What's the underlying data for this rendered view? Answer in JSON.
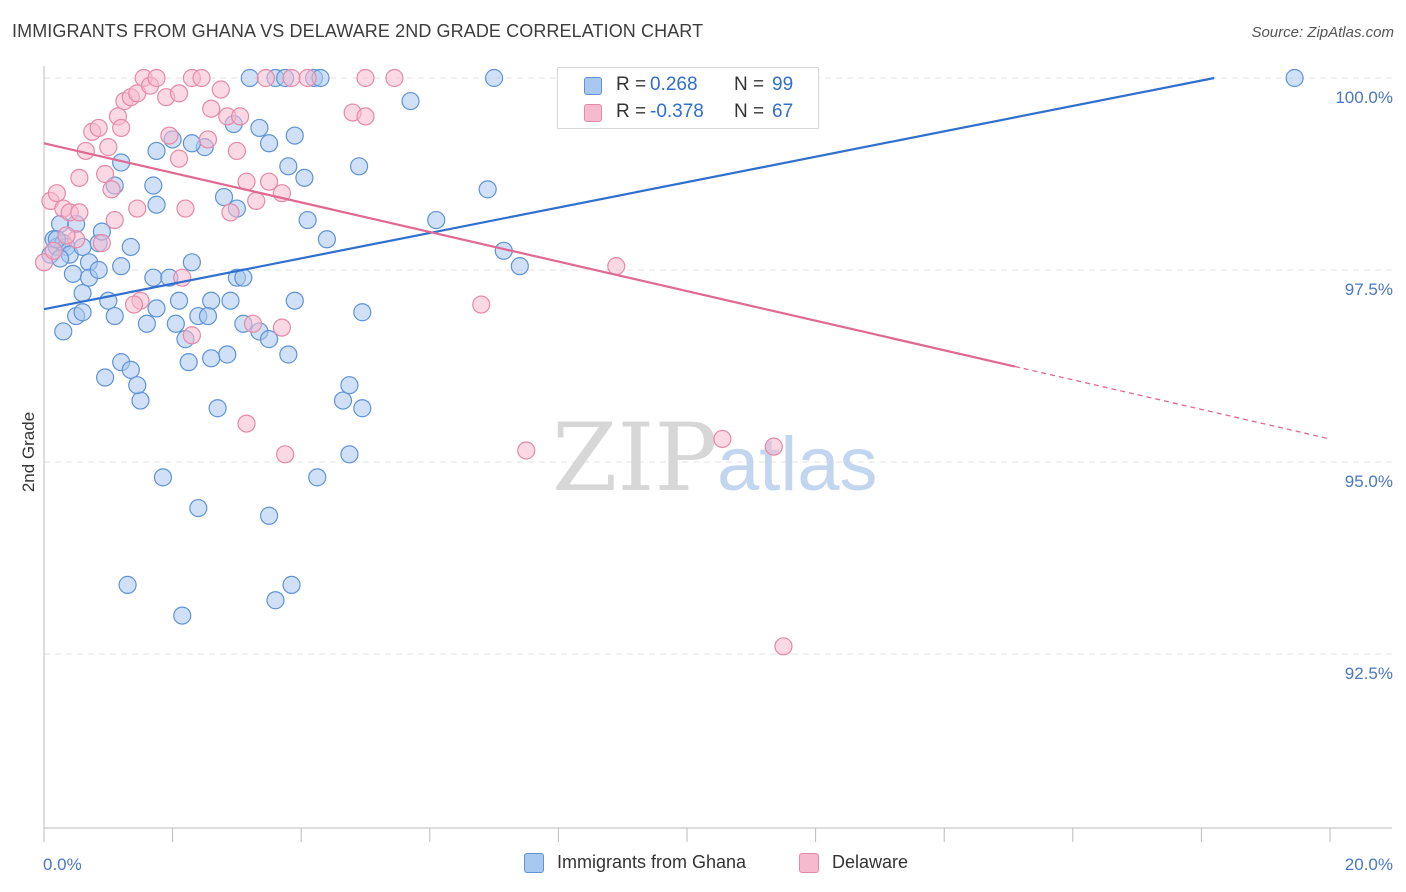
{
  "title": "IMMIGRANTS FROM GHANA VS DELAWARE 2ND GRADE CORRELATION CHART",
  "source": "Source: ZipAtlas.com",
  "watermark": {
    "zip": "ZIP",
    "atlas": "atlas"
  },
  "legend_top": {
    "rows": [
      {
        "r_label": "R =",
        "r_value": "0.268",
        "n_label": "N =",
        "n_value": "99"
      },
      {
        "r_label": "R =",
        "r_value": "-0.378",
        "n_label": "N =",
        "n_value": "67"
      }
    ]
  },
  "legend_bottom": {
    "items": [
      {
        "label": "Immigrants from Ghana"
      },
      {
        "label": "Delaware"
      }
    ]
  },
  "colors": {
    "blue_fill": "#a9c8f0",
    "blue_stroke": "#5f93d6",
    "blue_line": "#2f6fce",
    "pink_fill": "#f6b9cd",
    "pink_stroke": "#e689a8",
    "pink_line": "#e06892",
    "grid": "#e3e3e3",
    "axis": "#bbbbbb",
    "tick_text": "#4a78c2"
  },
  "chart_data": {
    "type": "scatter",
    "title": "IMMIGRANTS FROM GHANA VS DELAWARE 2ND GRADE CORRELATION CHART",
    "xlabel": "",
    "ylabel": "2nd Grade",
    "xlim": [
      0,
      20
    ],
    "ylim": [
      90.5,
      100.2
    ],
    "x_ticks": [
      "0.0%",
      "20.0%"
    ],
    "y_ticks": [
      {
        "value": 100.0,
        "label": "100.0%"
      },
      {
        "value": 97.5,
        "label": "97.5%"
      },
      {
        "value": 95.0,
        "label": "95.0%"
      },
      {
        "value": 92.5,
        "label": "92.5%"
      }
    ],
    "grid": true,
    "legend_position": "top-center",
    "series": [
      {
        "name": "Immigrants from Ghana",
        "color": "#a9c8f0",
        "r": 0.268,
        "n": 99,
        "trend": {
          "x": [
            0.0,
            18.2
          ],
          "y": [
            96.99,
            100.0
          ],
          "dashed_from": null
        },
        "points": [
          [
            0.1,
            97.7
          ],
          [
            0.15,
            97.9
          ],
          [
            0.2,
            97.8
          ],
          [
            0.25,
            98.1
          ],
          [
            0.3,
            97.85
          ],
          [
            0.35,
            97.8
          ],
          [
            0.4,
            97.7
          ],
          [
            0.45,
            97.45
          ],
          [
            0.5,
            98.1
          ],
          [
            0.6,
            97.8
          ],
          [
            0.7,
            97.6
          ],
          [
            0.85,
            97.85
          ],
          [
            0.3,
            96.7
          ],
          [
            0.5,
            96.9
          ],
          [
            0.6,
            97.2
          ],
          [
            0.7,
            97.4
          ],
          [
            1.0,
            97.1
          ],
          [
            1.1,
            96.9
          ],
          [
            1.2,
            96.3
          ],
          [
            1.35,
            96.2
          ],
          [
            1.5,
            95.8
          ],
          [
            1.6,
            96.8
          ],
          [
            1.7,
            97.4
          ],
          [
            1.95,
            97.4
          ],
          [
            2.1,
            97.1
          ],
          [
            2.05,
            96.8
          ],
          [
            2.2,
            96.6
          ],
          [
            2.25,
            96.3
          ],
          [
            2.4,
            96.9
          ],
          [
            2.6,
            97.1
          ],
          [
            2.9,
            97.1
          ],
          [
            3.0,
            97.4
          ],
          [
            3.1,
            96.8
          ],
          [
            3.35,
            96.7
          ],
          [
            3.5,
            96.6
          ],
          [
            3.8,
            96.4
          ],
          [
            3.9,
            97.1
          ],
          [
            4.95,
            96.95
          ],
          [
            0.95,
            96.1
          ],
          [
            1.45,
            96.0
          ],
          [
            2.7,
            95.7
          ],
          [
            2.85,
            96.4
          ],
          [
            4.65,
            95.8
          ],
          [
            4.75,
            96.0
          ],
          [
            4.95,
            95.7
          ],
          [
            1.85,
            94.8
          ],
          [
            2.4,
            94.4
          ],
          [
            3.5,
            94.3
          ],
          [
            4.25,
            94.8
          ],
          [
            4.75,
            95.1
          ],
          [
            1.3,
            93.4
          ],
          [
            2.15,
            93.0
          ],
          [
            3.6,
            93.2
          ],
          [
            3.85,
            93.4
          ],
          [
            3.2,
            100.0
          ],
          [
            3.6,
            100.0
          ],
          [
            3.75,
            100.0
          ],
          [
            4.2,
            100.0
          ],
          [
            4.3,
            100.0
          ],
          [
            7.0,
            100.0
          ],
          [
            8.2,
            100.0
          ],
          [
            8.7,
            100.0
          ],
          [
            19.45,
            100.0
          ],
          [
            5.7,
            99.7
          ],
          [
            2.95,
            99.4
          ],
          [
            3.35,
            99.35
          ],
          [
            3.5,
            99.15
          ],
          [
            3.9,
            99.25
          ],
          [
            2.0,
            99.2
          ],
          [
            2.5,
            99.1
          ],
          [
            1.75,
            99.05
          ],
          [
            2.3,
            99.15
          ],
          [
            1.2,
            98.9
          ],
          [
            3.8,
            98.85
          ],
          [
            4.9,
            98.85
          ],
          [
            4.05,
            98.7
          ],
          [
            1.7,
            98.6
          ],
          [
            1.1,
            98.6
          ],
          [
            2.8,
            98.45
          ],
          [
            1.75,
            98.35
          ],
          [
            6.9,
            98.55
          ],
          [
            4.1,
            98.15
          ],
          [
            6.1,
            98.15
          ],
          [
            3.0,
            98.3
          ],
          [
            4.4,
            97.9
          ],
          [
            1.35,
            97.8
          ],
          [
            7.15,
            97.75
          ],
          [
            7.4,
            97.55
          ],
          [
            2.3,
            97.6
          ],
          [
            3.1,
            97.4
          ],
          [
            1.2,
            97.55
          ],
          [
            0.25,
            97.65
          ],
          [
            0.2,
            97.9
          ],
          [
            0.9,
            98.0
          ],
          [
            2.55,
            96.9
          ],
          [
            2.6,
            96.35
          ],
          [
            0.85,
            97.5
          ],
          [
            1.75,
            97.0
          ],
          [
            0.6,
            96.95
          ]
        ]
      },
      {
        "name": "Delaware",
        "color": "#f6b9cd",
        "r": -0.378,
        "n": 67,
        "trend": {
          "x": [
            0.0,
            20.0
          ],
          "y": [
            99.15,
            95.3
          ],
          "dashed_from": 15.1
        },
        "points": [
          [
            0.0,
            97.6
          ],
          [
            0.1,
            98.4
          ],
          [
            0.2,
            98.5
          ],
          [
            0.3,
            98.3
          ],
          [
            0.4,
            98.25
          ],
          [
            0.5,
            97.9
          ],
          [
            0.15,
            97.75
          ],
          [
            0.35,
            97.95
          ],
          [
            0.55,
            98.7
          ],
          [
            0.65,
            99.05
          ],
          [
            0.75,
            99.3
          ],
          [
            0.85,
            99.35
          ],
          [
            0.95,
            98.75
          ],
          [
            1.05,
            98.55
          ],
          [
            1.15,
            99.5
          ],
          [
            1.25,
            99.7
          ],
          [
            1.35,
            99.75
          ],
          [
            1.45,
            99.8
          ],
          [
            1.55,
            100.0
          ],
          [
            1.65,
            99.9
          ],
          [
            1.75,
            100.0
          ],
          [
            1.9,
            99.75
          ],
          [
            2.1,
            99.8
          ],
          [
            2.3,
            100.0
          ],
          [
            2.45,
            100.0
          ],
          [
            2.6,
            99.6
          ],
          [
            2.75,
            99.85
          ],
          [
            2.85,
            99.5
          ],
          [
            3.05,
            99.5
          ],
          [
            1.95,
            99.25
          ],
          [
            2.55,
            99.2
          ],
          [
            1.2,
            99.35
          ],
          [
            1.0,
            99.1
          ],
          [
            3.0,
            99.05
          ],
          [
            3.15,
            98.65
          ],
          [
            3.5,
            98.65
          ],
          [
            3.7,
            98.5
          ],
          [
            3.3,
            98.4
          ],
          [
            2.9,
            98.25
          ],
          [
            2.2,
            98.3
          ],
          [
            1.45,
            98.3
          ],
          [
            1.1,
            98.15
          ],
          [
            0.55,
            98.25
          ],
          [
            3.45,
            100.0
          ],
          [
            3.85,
            100.0
          ],
          [
            4.1,
            100.0
          ],
          [
            5.0,
            100.0
          ],
          [
            5.45,
            100.0
          ],
          [
            8.55,
            100.0
          ],
          [
            4.8,
            99.55
          ],
          [
            5.0,
            99.5
          ],
          [
            2.1,
            98.95
          ],
          [
            1.5,
            97.1
          ],
          [
            2.15,
            97.4
          ],
          [
            2.3,
            96.65
          ],
          [
            3.25,
            96.8
          ],
          [
            3.7,
            96.75
          ],
          [
            6.8,
            97.05
          ],
          [
            8.9,
            97.55
          ],
          [
            3.15,
            95.5
          ],
          [
            3.75,
            95.1
          ],
          [
            7.5,
            95.15
          ],
          [
            10.55,
            95.3
          ],
          [
            11.35,
            95.2
          ],
          [
            11.5,
            92.6
          ],
          [
            1.4,
            97.05
          ],
          [
            0.9,
            97.85
          ]
        ]
      }
    ]
  }
}
